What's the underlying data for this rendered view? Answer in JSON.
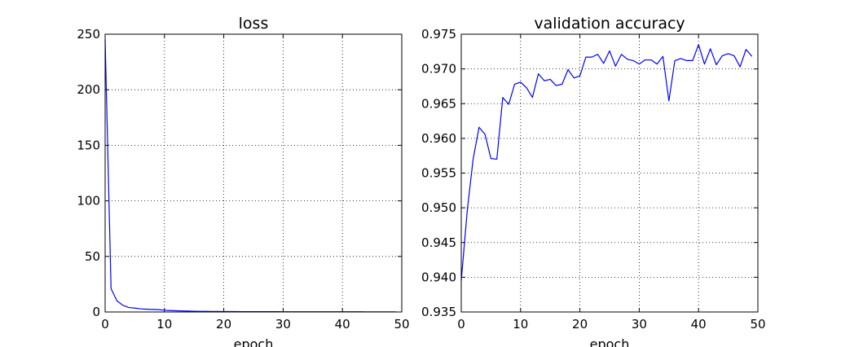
{
  "chart_data": [
    {
      "type": "line",
      "title": "loss",
      "xlabel": "epoch",
      "ylabel": "",
      "xlim": [
        0,
        50
      ],
      "ylim": [
        0,
        250
      ],
      "xticks": [
        "0",
        "10",
        "20",
        "30",
        "40",
        "50"
      ],
      "yticks": [
        "0",
        "50",
        "100",
        "150",
        "200",
        "250"
      ],
      "grid": true,
      "line_color": "#0000ff",
      "series": [
        {
          "x": [
            0,
            1,
            2,
            3,
            4,
            5,
            6,
            7,
            8,
            9,
            10,
            11,
            12,
            13,
            14,
            15,
            16,
            17,
            18,
            19,
            20,
            21,
            22,
            23,
            24,
            25,
            26,
            27,
            28,
            29,
            30,
            31,
            32,
            33,
            34,
            35,
            36,
            37,
            38,
            39,
            40,
            41,
            42,
            43,
            44,
            45,
            46,
            47,
            48,
            49
          ],
          "values": [
            245,
            21,
            10,
            6,
            4,
            3.5,
            2.8,
            2.5,
            2.3,
            2.1,
            1.6,
            1.3,
            1.1,
            0.9,
            0.8,
            0.7,
            0.6,
            0.55,
            0.5,
            0.45,
            0.4,
            0.38,
            0.35,
            0.33,
            0.3,
            0.3,
            0.28,
            0.27,
            0.26,
            0.25,
            0.24,
            0.23,
            0.22,
            0.21,
            0.2,
            0.2,
            0.19,
            0.19,
            0.18,
            0.18,
            0.17,
            0.17,
            0.16,
            0.16,
            0.15,
            0.15,
            0.15,
            0.14,
            0.14,
            0.14
          ]
        }
      ]
    },
    {
      "type": "line",
      "title": "validation accuracy",
      "xlabel": "epoch",
      "ylabel": "",
      "xlim": [
        0,
        50
      ],
      "ylim": [
        0.935,
        0.975
      ],
      "xticks": [
        "0",
        "10",
        "20",
        "30",
        "40",
        "50"
      ],
      "yticks": [
        "0.935",
        "0.940",
        "0.945",
        "0.950",
        "0.955",
        "0.960",
        "0.965",
        "0.970",
        "0.975"
      ],
      "grid": true,
      "line_color": "#0000ff",
      "series": [
        {
          "x": [
            0,
            1,
            2,
            3,
            4,
            5,
            6,
            7,
            8,
            9,
            10,
            11,
            12,
            13,
            14,
            15,
            16,
            17,
            18,
            19,
            20,
            21,
            22,
            23,
            24,
            25,
            26,
            27,
            28,
            29,
            30,
            31,
            32,
            33,
            34,
            35,
            36,
            37,
            38,
            39,
            40,
            41,
            42,
            43,
            44,
            45,
            46,
            47,
            48,
            49
          ],
          "values": [
            0.9395,
            0.9495,
            0.957,
            0.9616,
            0.9606,
            0.9571,
            0.957,
            0.9659,
            0.9649,
            0.9678,
            0.9681,
            0.9673,
            0.9659,
            0.9693,
            0.9683,
            0.9685,
            0.9676,
            0.9678,
            0.9699,
            0.9687,
            0.969,
            0.9717,
            0.9717,
            0.9721,
            0.9708,
            0.9726,
            0.9704,
            0.9721,
            0.9714,
            0.9712,
            0.9707,
            0.9713,
            0.9713,
            0.9707,
            0.9718,
            0.9654,
            0.9712,
            0.9715,
            0.9712,
            0.9712,
            0.9735,
            0.9707,
            0.9729,
            0.9706,
            0.9719,
            0.9722,
            0.9719,
            0.9703,
            0.9728,
            0.9718
          ]
        }
      ]
    }
  ]
}
